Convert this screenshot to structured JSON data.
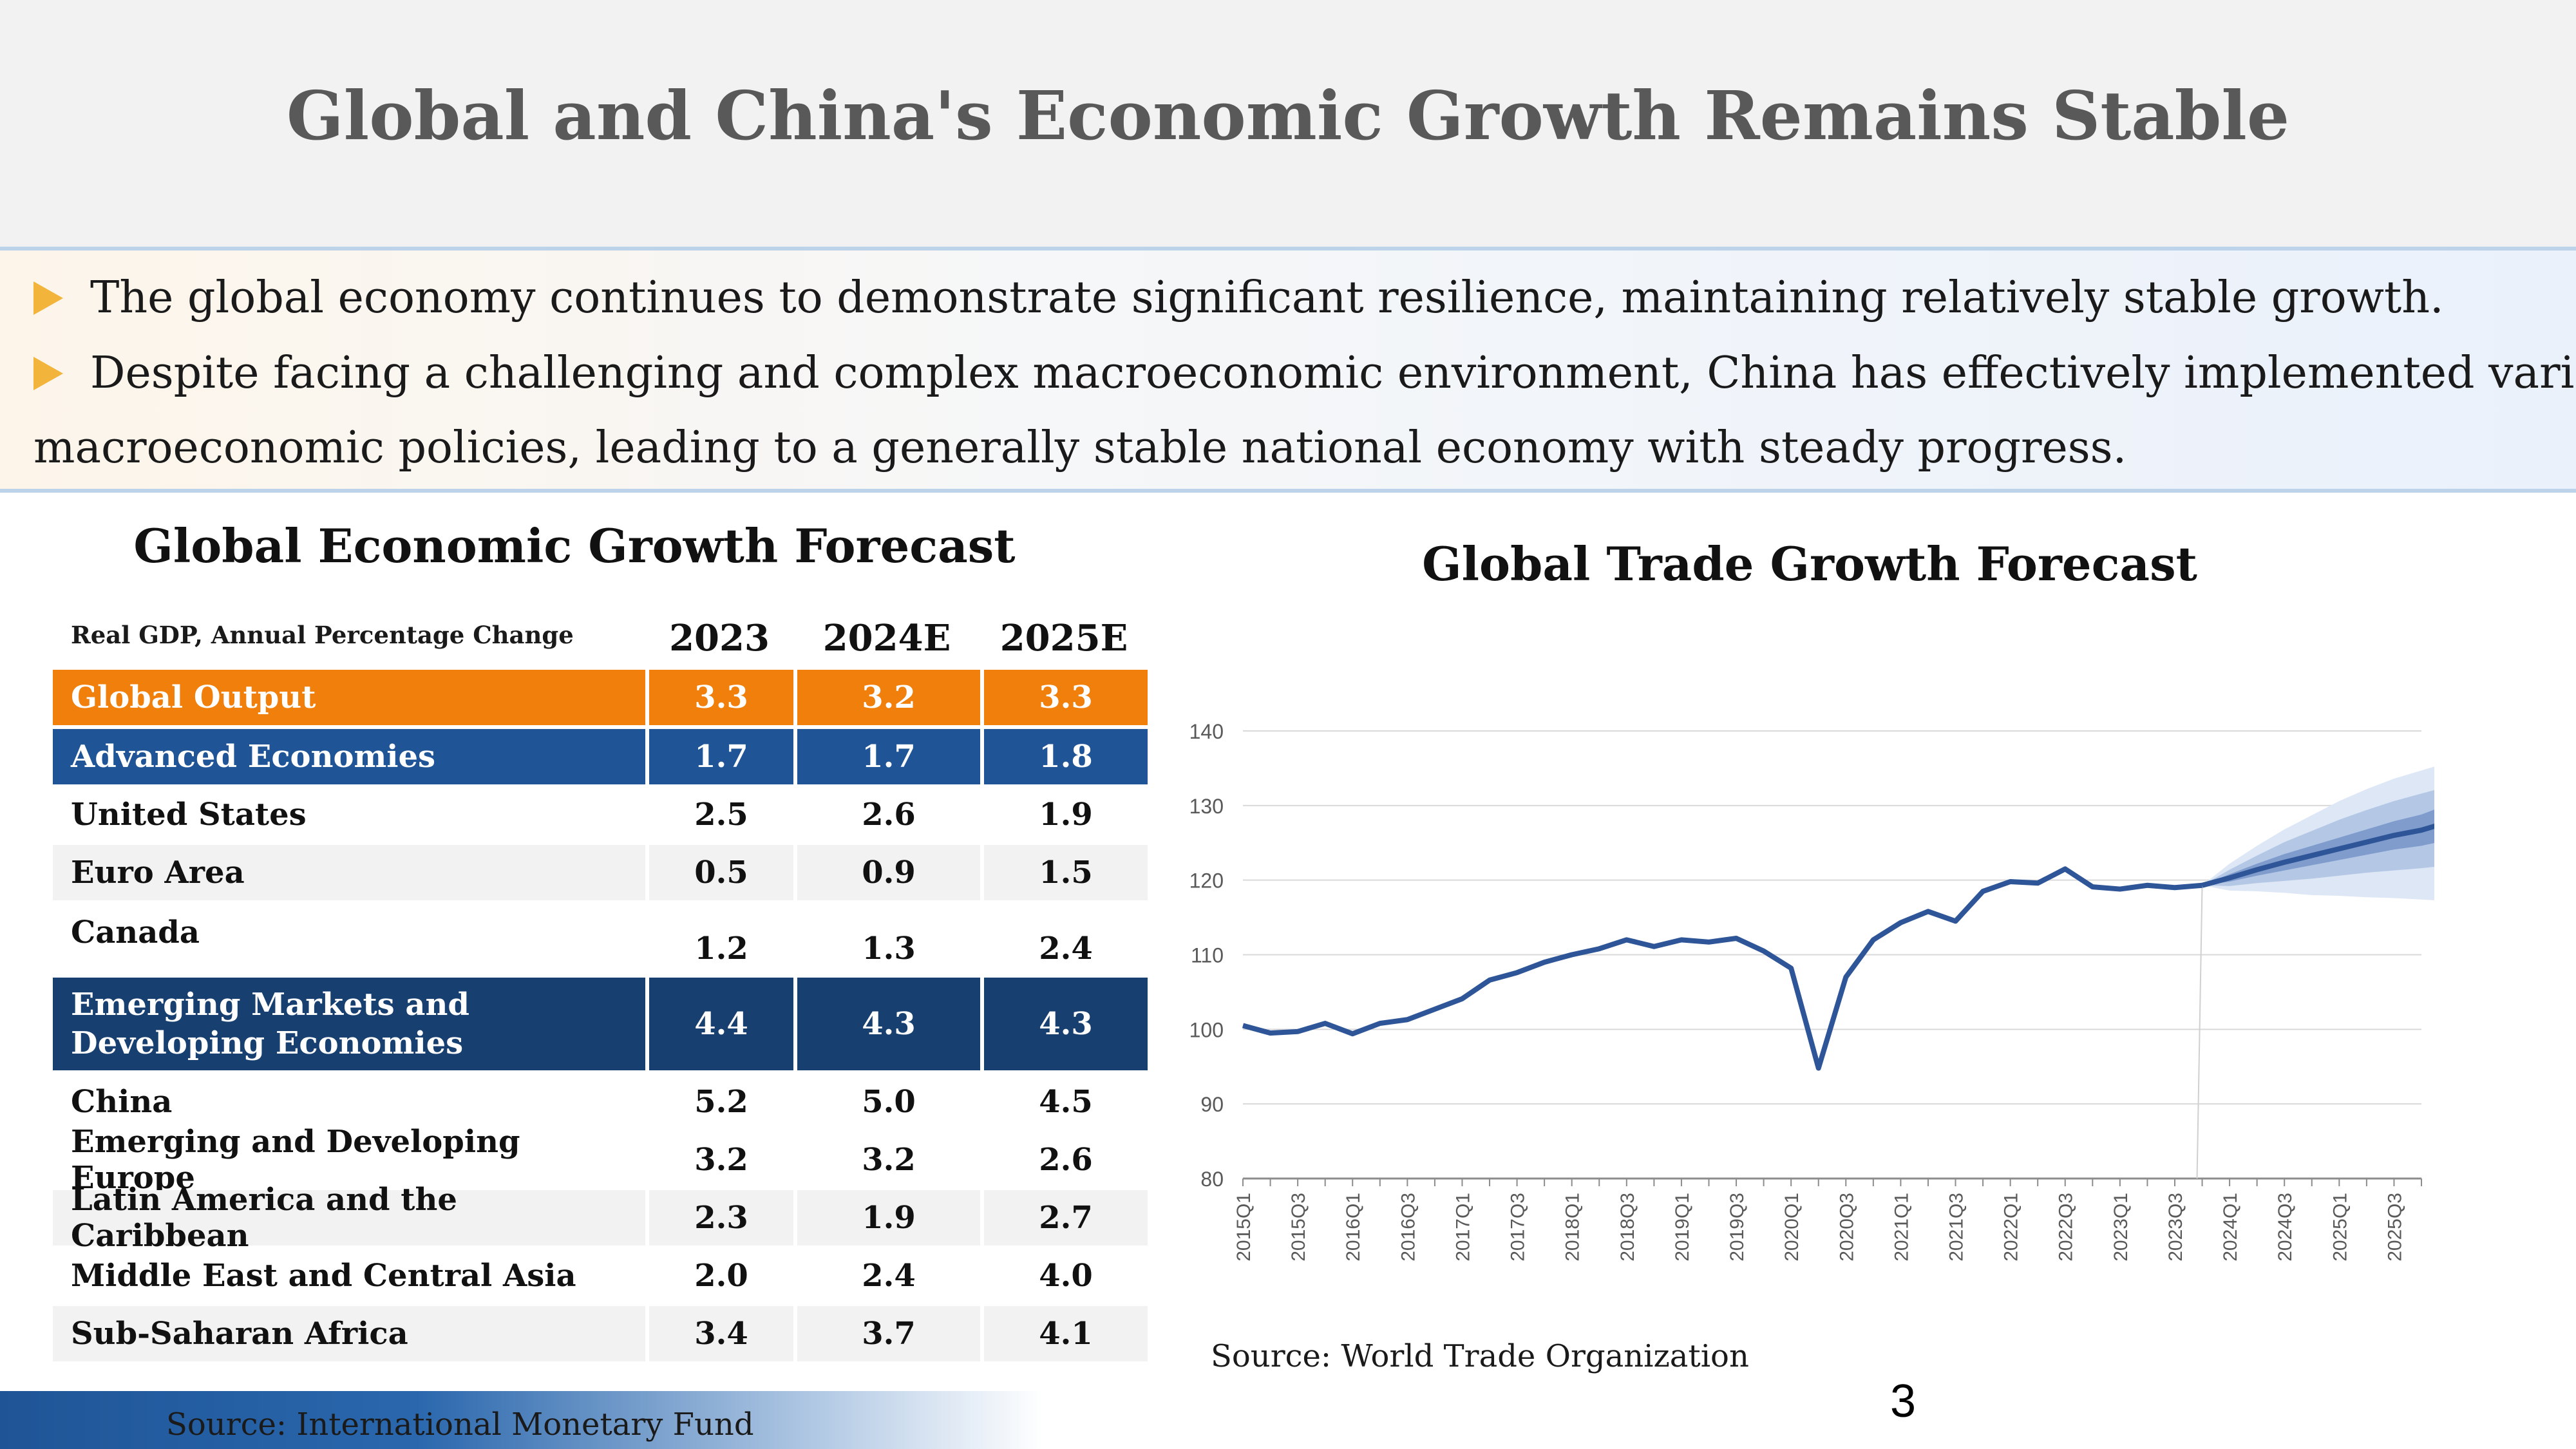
{
  "title": "Global and China's Economic Growth Remains Stable",
  "bullets": [
    "The global economy continues to demonstrate significant resilience, maintaining relatively stable growth.",
    "Despite facing a challenging and complex macroeconomic environment, China has effectively implemented various",
    "macroeconomic policies, leading to a generally stable national economy with steady progress."
  ],
  "colors": {
    "orange": "#f07f0c",
    "blue": "#1f5597",
    "navy": "#173f70",
    "bullet": "#f2b43a",
    "line": "#2e5597"
  },
  "gdp_table": {
    "title": "Global Economic Growth Forecast",
    "unit_label": "Real GDP, Annual Percentage Change",
    "columns": [
      "2023",
      "2024E",
      "2025E"
    ],
    "rows": [
      {
        "name": "Global Output",
        "values": [
          "3.3",
          "3.2",
          "3.3"
        ]
      },
      {
        "name": "Advanced Economies",
        "values": [
          "1.7",
          "1.7",
          "1.8"
        ]
      },
      {
        "name": "United States",
        "values": [
          "2.5",
          "2.6",
          "1.9"
        ]
      },
      {
        "name": "Euro Area",
        "values": [
          "0.5",
          "0.9",
          "1.5"
        ]
      },
      {
        "name": "Canada",
        "values": [
          "1.2",
          "1.3",
          "2.4"
        ]
      },
      {
        "name": "Emerging Markets and Developing Economies",
        "values": [
          "4.4",
          "4.3",
          "4.3"
        ]
      },
      {
        "name": "China",
        "values": [
          "5.2",
          "5.0",
          "4.5"
        ]
      },
      {
        "name": "Emerging and Developing Europe",
        "values": [
          "3.2",
          "3.2",
          "2.6"
        ]
      },
      {
        "name": "Latin America and the Caribbean",
        "values": [
          "2.3",
          "1.9",
          "2.7"
        ]
      },
      {
        "name": "Middle East and Central Asia",
        "values": [
          "2.0",
          "2.4",
          "4.0"
        ]
      },
      {
        "name": "Sub-Saharan Africa",
        "values": [
          "3.4",
          "3.7",
          "4.1"
        ]
      }
    ],
    "source": "Source: International Monetary Fund"
  },
  "chart_data": {
    "type": "line",
    "title": "Global Trade Growth Forecast",
    "xlabel": "",
    "ylabel": "",
    "ylim": [
      80,
      140
    ],
    "yticks": [
      80,
      90,
      100,
      110,
      120,
      130,
      140
    ],
    "x": [
      "2015Q1",
      "2015Q2",
      "2015Q3",
      "2015Q4",
      "2016Q1",
      "2016Q2",
      "2016Q3",
      "2016Q4",
      "2017Q1",
      "2017Q2",
      "2017Q3",
      "2017Q4",
      "2018Q1",
      "2018Q2",
      "2018Q3",
      "2018Q4",
      "2019Q1",
      "2019Q2",
      "2019Q3",
      "2019Q4",
      "2020Q1",
      "2020Q2",
      "2020Q3",
      "2020Q4",
      "2021Q1",
      "2021Q2",
      "2021Q3",
      "2021Q4",
      "2022Q1",
      "2022Q2",
      "2022Q3",
      "2022Q4",
      "2023Q1",
      "2023Q2",
      "2023Q3",
      "2023Q4",
      "2024Q1",
      "2024Q2",
      "2024Q3",
      "2024Q4",
      "2025Q1",
      "2025Q2",
      "2025Q3",
      "2025Q4"
    ],
    "xtick_labels": [
      "2015Q1",
      "2015Q3",
      "2016Q1",
      "2016Q3",
      "2017Q1",
      "2017Q3",
      "2018Q1",
      "2018Q3",
      "2019Q1",
      "2019Q3",
      "2020Q1",
      "2020Q3",
      "2021Q1",
      "2021Q3",
      "2022Q1",
      "2022Q3",
      "2023Q1",
      "2023Q3",
      "2024Q1",
      "2024Q3",
      "2025Q1",
      "2025Q3"
    ],
    "actual": [
      100.5,
      99.5,
      99.7,
      100.8,
      99.4,
      100.8,
      101.3,
      102.7,
      104.1,
      106.6,
      107.6,
      109.0,
      110.0,
      110.8,
      112.0,
      111.1,
      112.0,
      111.7,
      112.2,
      110.5,
      108.2,
      94.8,
      107.0,
      112.0,
      114.3,
      115.8,
      114.5,
      118.5,
      119.8,
      119.6,
      121.5,
      119.1,
      118.8,
      119.3,
      119.0,
      119.3
    ],
    "forecast_start_index": 35,
    "forecast": [
      119.3,
      120.3,
      121.4,
      122.4,
      123.3,
      124.2,
      125.1,
      126.0,
      126.7,
      127.8
    ],
    "bands": [
      {
        "lower": [
          119.3,
          118.6,
          118.5,
          118.3,
          118.0,
          117.9,
          117.7,
          117.6,
          117.4,
          117.2
        ],
        "upper": [
          119.3,
          122.2,
          124.6,
          126.8,
          128.7,
          130.6,
          132.2,
          133.6,
          134.7,
          135.8
        ]
      },
      {
        "lower": [
          119.3,
          119.2,
          119.6,
          119.9,
          120.2,
          120.6,
          121.0,
          121.3,
          121.6,
          122.0
        ],
        "upper": [
          119.3,
          121.4,
          123.3,
          125.1,
          126.6,
          128.1,
          129.4,
          130.6,
          131.6,
          132.6
        ]
      },
      {
        "lower": [
          119.3,
          119.8,
          120.6,
          121.3,
          122.0,
          122.7,
          123.4,
          124.1,
          124.6,
          125.4
        ],
        "upper": [
          119.3,
          120.8,
          122.2,
          123.5,
          124.6,
          125.7,
          126.8,
          127.9,
          128.8,
          130.2
        ]
      }
    ],
    "source": "Source: World Trade Organization"
  },
  "page_number": "3"
}
